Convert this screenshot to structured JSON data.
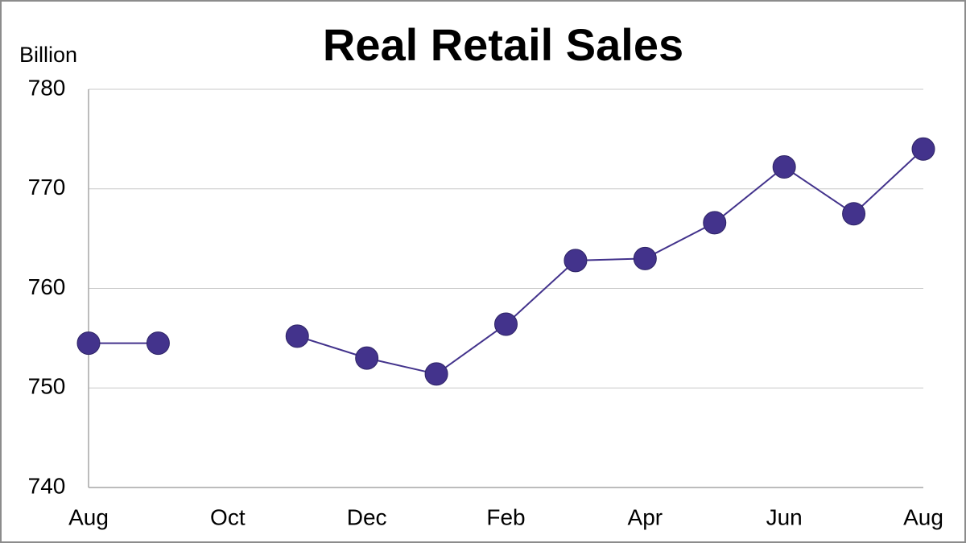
{
  "chart_data": {
    "type": "line",
    "title": "Real Retail Sales",
    "y_label": "Billion",
    "categories": [
      "Aug",
      null,
      "Oct",
      null,
      "Dec",
      null,
      "Feb",
      null,
      "Apr",
      null,
      "Jun",
      null,
      "Aug"
    ],
    "series": [
      {
        "name": "Real Retail Sales",
        "color": "#43338c",
        "values": [
          754.5,
          754.5,
          null,
          755.2,
          753.0,
          751.4,
          756.4,
          762.8,
          763.0,
          766.6,
          772.2,
          767.5,
          774.0
        ]
      }
    ],
    "ylim": [
      740,
      780
    ],
    "yticks": [
      740,
      750,
      760,
      770,
      780
    ],
    "grid": true
  }
}
